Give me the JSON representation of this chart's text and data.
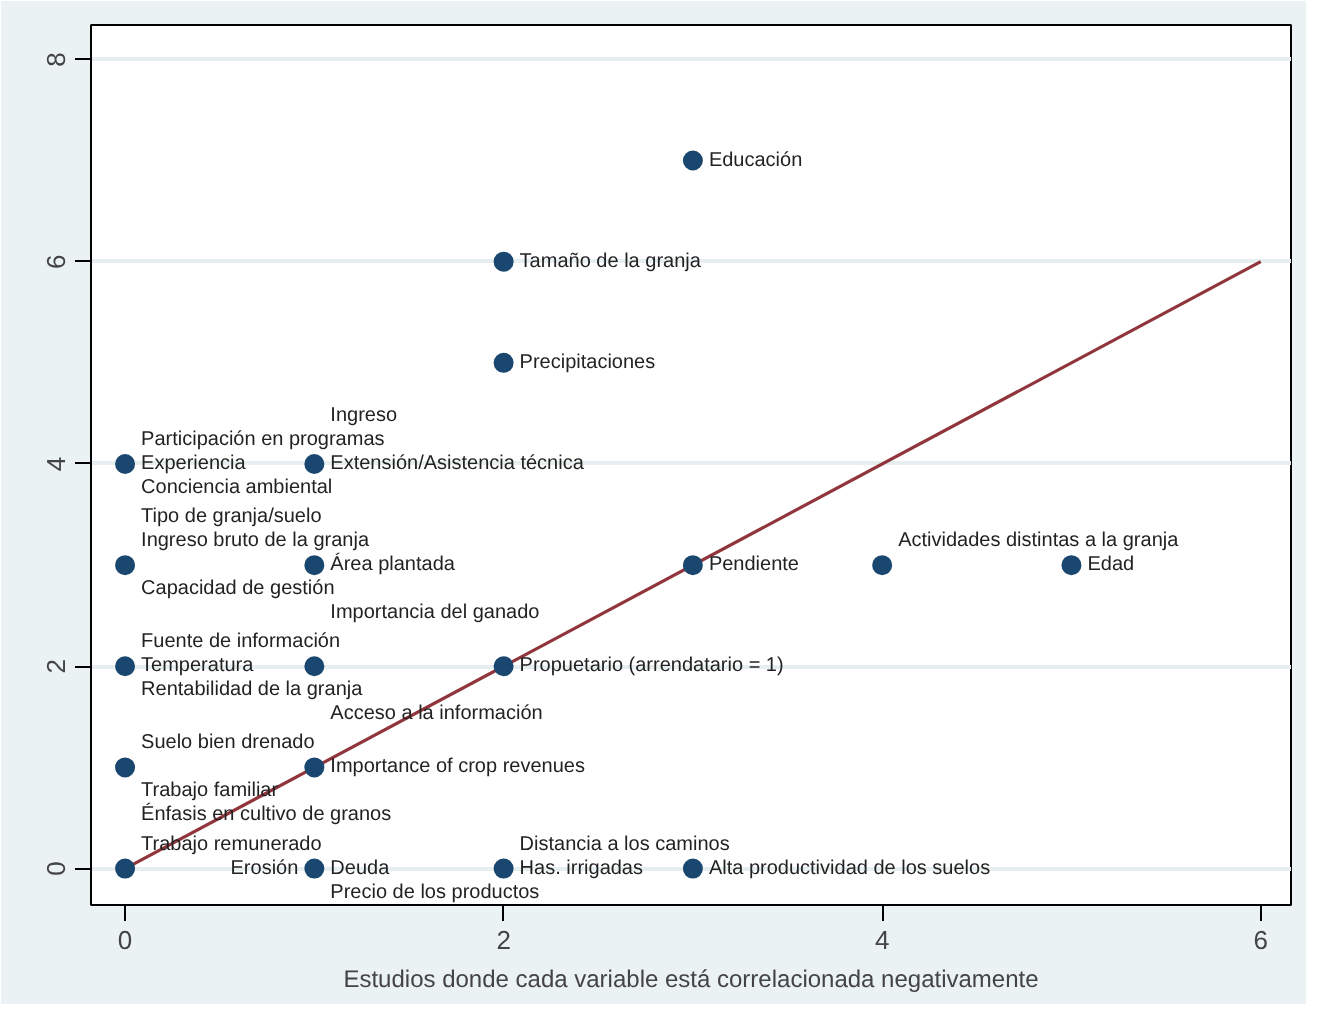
{
  "chart_data": {
    "type": "scatter",
    "xlabel": "Estudios donde cada variable está correlacionada negativamente",
    "xlim": [
      -0.18,
      6.16
    ],
    "ylim": [
      -0.36,
      8.34
    ],
    "xticks": [
      0,
      2,
      4,
      6
    ],
    "yticks": [
      0,
      2,
      4,
      6,
      8
    ],
    "grid": "y",
    "marker": "circle",
    "series": [
      {
        "color": "#1a476f",
        "x": [
          0,
          1,
          0,
          1,
          0,
          1,
          2,
          0,
          1,
          0,
          1,
          2,
          3,
          3,
          2,
          2,
          3,
          4,
          5
        ],
        "values": [
          4,
          4,
          3,
          3,
          2,
          2,
          2,
          1,
          1,
          0,
          0,
          0,
          0,
          7,
          6,
          5,
          3,
          3,
          3
        ]
      },
      {
        "type": "line",
        "marker": "none",
        "color": "#90353b",
        "x": [
          0,
          6
        ],
        "values": [
          0,
          6
        ]
      }
    ],
    "annotations": [
      {
        "text": "Experiencia",
        "x": 0,
        "y": 4
      },
      {
        "text": "Participación en programas",
        "x": 0,
        "y": 4
      },
      {
        "text": "Conciencia ambiental",
        "x": 0,
        "y": 4
      },
      {
        "text": "Extensión/Asistencia técnica",
        "x": 1,
        "y": 4
      },
      {
        "text": "Ingreso",
        "x": 1,
        "y": 4
      },
      {
        "text": "Ingreso bruto de la granja",
        "x": 0,
        "y": 3
      },
      {
        "text": "Capacidad de gestión",
        "x": 0,
        "y": 3
      },
      {
        "text": "Tipo de granja/suelo",
        "x": 0,
        "y": 3
      },
      {
        "text": "Área plantada",
        "x": 1,
        "y": 3
      },
      {
        "text": "Importancia del ganado",
        "x": 1,
        "y": 3
      },
      {
        "text": "Fuente de información",
        "x": 0,
        "y": 2
      },
      {
        "text": "Temperatura",
        "x": 0,
        "y": 2
      },
      {
        "text": "Rentabilidad de la granja",
        "x": 0,
        "y": 2
      },
      {
        "text": "Acceso a la información",
        "x": 1,
        "y": 2
      },
      {
        "text": "Propuetario (arrendatario = 1)",
        "x": 2,
        "y": 2
      },
      {
        "text": "Suelo bien drenado",
        "x": 0,
        "y": 1
      },
      {
        "text": "Trabajo familiar",
        "x": 0,
        "y": 1
      },
      {
        "text": "Énfasis en cultivo de granos",
        "x": 0,
        "y": 1
      },
      {
        "text": "Importance of crop revenues",
        "x": 1,
        "y": 1
      },
      {
        "text": "Trabajo remunerado",
        "x": 0,
        "y": 0
      },
      {
        "text": "Deuda",
        "x": 1,
        "y": 0
      },
      {
        "text": "Erosión",
        "x": 1,
        "y": 0
      },
      {
        "text": "Precio de los productos",
        "x": 1,
        "y": 0
      },
      {
        "text": "Has. irrigadas",
        "x": 2,
        "y": 0
      },
      {
        "text": "Distancia a los caminos",
        "x": 2,
        "y": 0
      },
      {
        "text": "Alta productividad de los suelos",
        "x": 3,
        "y": 0
      },
      {
        "text": "Educación",
        "x": 3,
        "y": 7
      },
      {
        "text": "Tamaño de la granja",
        "x": 2,
        "y": 6
      },
      {
        "text": "Precipitaciones",
        "x": 2,
        "y": 5
      },
      {
        "text": "Pendiente",
        "x": 3,
        "y": 3
      },
      {
        "text": "Actividades distintas a la granja",
        "x": 4,
        "y": 3
      },
      {
        "text": "Edad",
        "x": 5,
        "y": 3
      }
    ]
  }
}
